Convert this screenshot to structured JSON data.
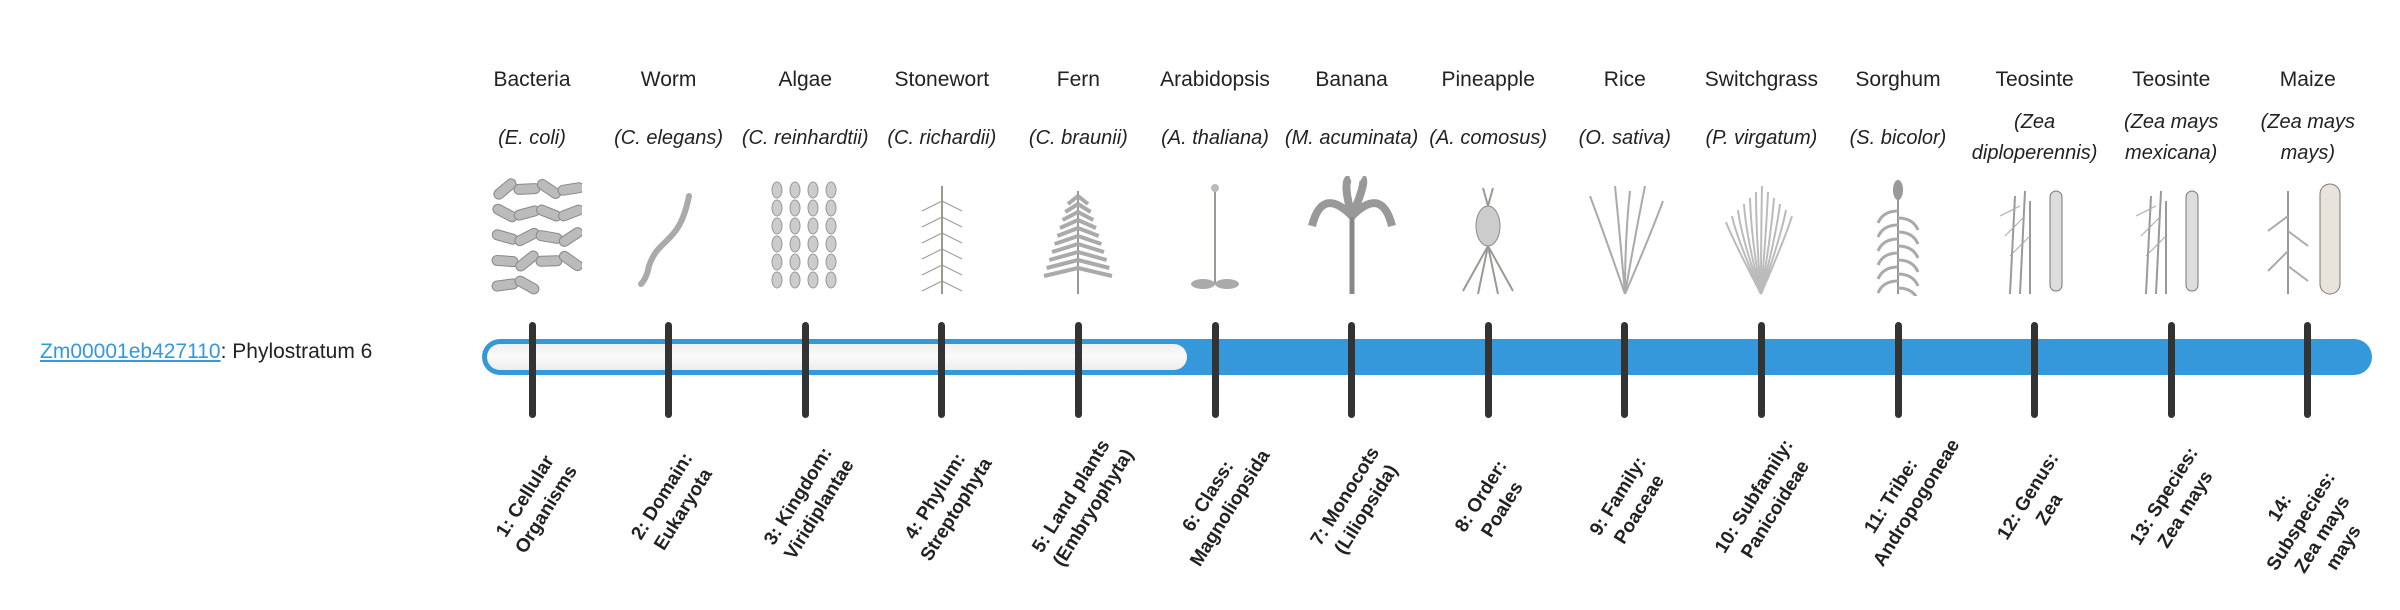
{
  "gene": {
    "id": "Zm00001eb427110",
    "suffix": ": Phylostratum 6"
  },
  "phylostratum": 6,
  "total_strata": 14,
  "colors": {
    "accent": "#3498db",
    "tick": "#333333",
    "empty": "#f5f5f5"
  },
  "stages": [
    {
      "name": "Bacteria",
      "sci": "(E. coli)",
      "icon": "bacteria-icon",
      "label": "1: Cellular Organisms"
    },
    {
      "name": "Worm",
      "sci": "(C. elegans)",
      "icon": "worm-icon",
      "label": "2: Domain: Eukaryota"
    },
    {
      "name": "Algae",
      "sci": "(C. reinhardtii)",
      "icon": "algae-icon",
      "label": "3: Kingdom: Viridiplantae"
    },
    {
      "name": "Stonewort",
      "sci": "(C. richardii)",
      "icon": "stonewort-icon",
      "label": "4: Phylum: Streptophyta"
    },
    {
      "name": "Fern",
      "sci": "(C. braunii)",
      "icon": "fern-icon",
      "label": "5: Land plants (Embryophyta)"
    },
    {
      "name": "Arabidopsis",
      "sci": "(A. thaliana)",
      "icon": "arabidopsis-icon",
      "label": "6: Class: Magnoliopsida"
    },
    {
      "name": "Banana",
      "sci": "(M. acuminata)",
      "icon": "banana-icon",
      "label": "7: Monocots (Liliopsida)"
    },
    {
      "name": "Pineapple",
      "sci": "(A. comosus)",
      "icon": "pineapple-icon",
      "label": "8: Order: Poales"
    },
    {
      "name": "Rice",
      "sci": "(O. sativa)",
      "icon": "rice-icon",
      "label": "9: Family: Poaceae"
    },
    {
      "name": "Switchgrass",
      "sci": "(P. virgatum)",
      "icon": "switchgrass-icon",
      "label": "10: Subfamily: Panicoideae"
    },
    {
      "name": "Sorghum",
      "sci": "(S. bicolor)",
      "icon": "sorghum-icon",
      "label": "11: Tribe: Andropogoneae"
    },
    {
      "name": "Teosinte",
      "sci": "(Zea diploperennis)",
      "icon": "teosinte-icon",
      "label": "12: Genus: Zea"
    },
    {
      "name": "Teosinte",
      "sci": "(Zea mays mexicana)",
      "icon": "teosinte-icon",
      "label": "13: Species: Zea mays"
    },
    {
      "name": "Maize",
      "sci": "(Zea mays mays)",
      "icon": "maize-icon",
      "label": "14: Subspecies: Zea mays mays"
    }
  ]
}
